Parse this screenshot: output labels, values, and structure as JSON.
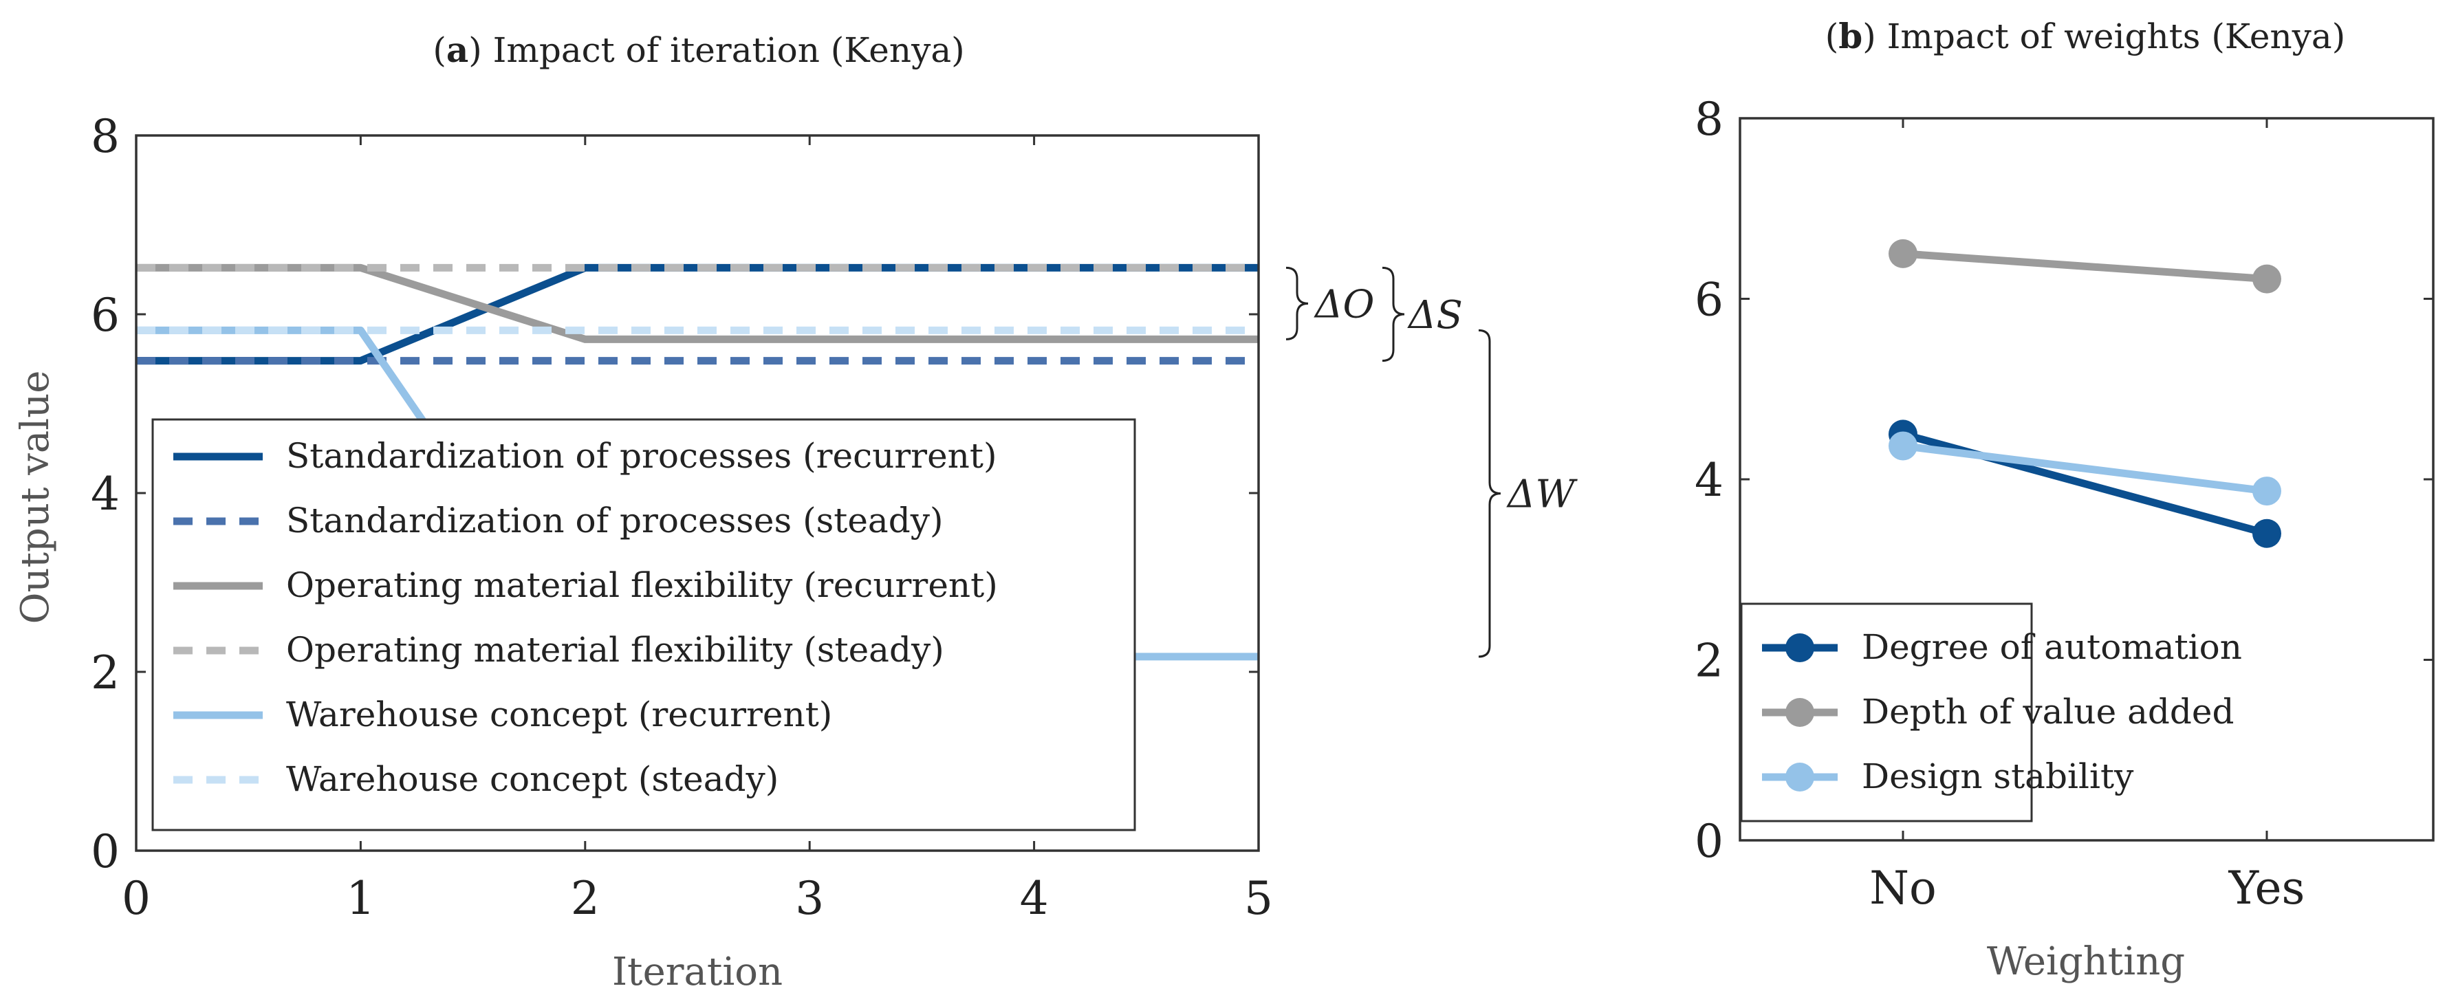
{
  "figure": {
    "panel_a_tag": "a",
    "panel_a_title": "Impact of iteration (Kenya)",
    "panel_b_tag": "b",
    "panel_b_title": "Impact of weights (Kenya)"
  },
  "colors": {
    "dark_blue": "#0b4f8f",
    "mid_blue": "#4a72ad",
    "gray": "#9b9b9b",
    "light_gray": "#b8b8b8",
    "light_blue": "#94c2e8",
    "pale_blue": "#c6e0f5"
  },
  "chart_data": [
    {
      "type": "line",
      "xlabel": "Iteration",
      "ylabel": "Output value",
      "xlim": [
        0,
        5
      ],
      "ylim": [
        0,
        8
      ],
      "xticks": [
        "0",
        "1",
        "2",
        "3",
        "4",
        "5"
      ],
      "yticks": [
        "0",
        "2",
        "4",
        "6",
        "8"
      ],
      "legend_position": "bottom-left",
      "series": [
        {
          "name": "Standardization of processes (recurrent)",
          "style": "solid",
          "color": "#0b4f8f",
          "x": [
            0,
            1,
            2,
            3,
            4,
            5
          ],
          "y": [
            5.48,
            5.48,
            6.52,
            6.52,
            6.52,
            6.52
          ]
        },
        {
          "name": "Standardization of processes (steady)",
          "style": "dashed",
          "color": "#4a72ad",
          "x": [
            0,
            1,
            2,
            3,
            4,
            5
          ],
          "y": [
            5.48,
            5.48,
            5.48,
            5.48,
            5.48,
            5.48
          ]
        },
        {
          "name": "Operating material flexibility (recurrent)",
          "style": "solid",
          "color": "#9b9b9b",
          "x": [
            0,
            1,
            2,
            3,
            4,
            5
          ],
          "y": [
            6.52,
            6.52,
            5.72,
            5.72,
            5.72,
            5.72
          ]
        },
        {
          "name": "Operating material flexibility (steady)",
          "style": "dashed",
          "color": "#b8b8b8",
          "x": [
            0,
            1,
            2,
            3,
            4,
            5
          ],
          "y": [
            6.52,
            6.52,
            6.52,
            6.52,
            6.52,
            6.52
          ]
        },
        {
          "name": "Warehouse concept (recurrent)",
          "style": "solid",
          "color": "#94c2e8",
          "x": [
            0,
            1,
            2,
            3,
            4,
            5
          ],
          "y": [
            5.82,
            5.82,
            2.17,
            2.17,
            2.17,
            2.17
          ]
        },
        {
          "name": "Warehouse concept (steady)",
          "style": "dashed",
          "color": "#c6e0f5",
          "x": [
            0,
            1,
            2,
            3,
            4,
            5
          ],
          "y": [
            5.82,
            5.82,
            5.82,
            5.82,
            5.82,
            5.82
          ]
        }
      ],
      "annotations": [
        {
          "text": "ΔO",
          "y_range": [
            5.72,
            6.52
          ]
        },
        {
          "text": "ΔS",
          "y_range": [
            5.48,
            6.52
          ]
        },
        {
          "text": "ΔW",
          "y_range": [
            2.17,
            5.82
          ]
        }
      ]
    },
    {
      "type": "line",
      "xlabel": "Weighting",
      "ylabel": "",
      "categories": [
        "No",
        "Yes"
      ],
      "ylim": [
        0,
        8
      ],
      "yticks": [
        "0",
        "2",
        "4",
        "6",
        "8"
      ],
      "legend_position": "bottom",
      "series": [
        {
          "name": "Degree of automation",
          "color": "#0b4f8f",
          "values": [
            4.5,
            3.4
          ]
        },
        {
          "name": "Depth of value added",
          "color": "#9b9b9b",
          "values": [
            6.5,
            6.22
          ]
        },
        {
          "name": "Design stability",
          "color": "#94c2e8",
          "values": [
            4.37,
            3.87
          ]
        }
      ]
    }
  ]
}
